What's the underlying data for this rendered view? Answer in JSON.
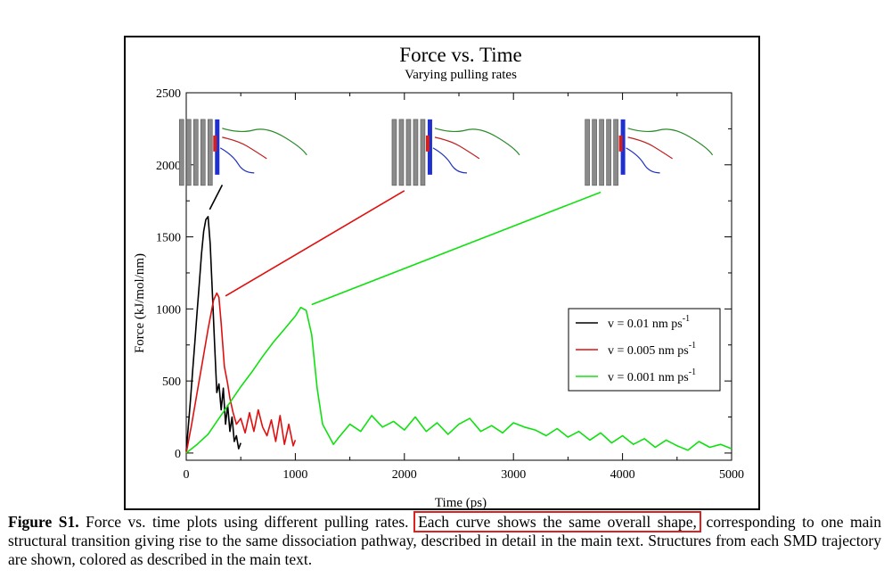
{
  "chart_data": {
    "type": "line",
    "title": "Force vs. Time",
    "subtitle": "Varying pulling rates",
    "xlabel": "Time (ps)",
    "ylabel": "Force (kJ/mol/nm)",
    "xlim": [
      0,
      5000
    ],
    "ylim": [
      -50,
      2500
    ],
    "xticks": [
      0,
      1000,
      2000,
      3000,
      4000,
      5000
    ],
    "yticks": [
      0,
      500,
      1000,
      1500,
      2000,
      2500
    ],
    "grid": false,
    "legend_position": "right",
    "series": [
      {
        "name": "v = 0.01 nm ps",
        "name_sup": "-1",
        "color": "#000000",
        "x": [
          0,
          20,
          40,
          60,
          80,
          100,
          120,
          140,
          160,
          180,
          200,
          220,
          240,
          260,
          280,
          300,
          320,
          340,
          360,
          380,
          400,
          420,
          440,
          460,
          480,
          500
        ],
        "y": [
          10,
          190,
          380,
          580,
          780,
          980,
          1180,
          1380,
          1540,
          1620,
          1640,
          1450,
          1100,
          760,
          420,
          480,
          300,
          450,
          200,
          330,
          150,
          250,
          80,
          120,
          30,
          70
        ]
      },
      {
        "name": "v = 0.005 nm ps",
        "name_sup": "-1",
        "color": "#e01010",
        "x": [
          0,
          50,
          100,
          150,
          200,
          250,
          280,
          300,
          320,
          350,
          380,
          400,
          430,
          460,
          500,
          540,
          580,
          620,
          660,
          700,
          740,
          780,
          820,
          860,
          900,
          940,
          980,
          1000
        ],
        "y": [
          0,
          200,
          420,
          640,
          860,
          1060,
          1110,
          1080,
          900,
          600,
          480,
          380,
          280,
          200,
          240,
          140,
          280,
          150,
          300,
          180,
          120,
          230,
          80,
          260,
          60,
          200,
          50,
          90
        ]
      },
      {
        "name": "v = 0.001 nm ps",
        "name_sup": "-1",
        "color": "#10e010",
        "x": [
          0,
          100,
          200,
          300,
          400,
          500,
          600,
          700,
          800,
          900,
          1000,
          1050,
          1100,
          1150,
          1200,
          1250,
          1300,
          1350,
          1400,
          1500,
          1600,
          1700,
          1800,
          1900,
          2000,
          2100,
          2200,
          2300,
          2400,
          2500,
          2600,
          2700,
          2800,
          2900,
          3000,
          3100,
          3200,
          3300,
          3400,
          3500,
          3600,
          3700,
          3800,
          3900,
          4000,
          4100,
          4200,
          4300,
          4400,
          4500,
          4600,
          4700,
          4800,
          4900,
          5000
        ],
        "y": [
          0,
          60,
          130,
          240,
          350,
          460,
          560,
          670,
          770,
          860,
          950,
          1010,
          990,
          820,
          450,
          200,
          130,
          60,
          110,
          200,
          150,
          260,
          180,
          220,
          160,
          250,
          150,
          210,
          130,
          200,
          240,
          150,
          190,
          140,
          210,
          180,
          160,
          120,
          170,
          110,
          150,
          90,
          140,
          70,
          120,
          60,
          100,
          40,
          90,
          50,
          20,
          80,
          40,
          60,
          30
        ]
      }
    ],
    "annotations": [
      {
        "type": "line",
        "color": "#000000",
        "from": [
          215,
          1690
        ],
        "to": [
          330,
          1860
        ]
      },
      {
        "type": "line",
        "color": "#e01010",
        "from": [
          360,
          1090
        ],
        "to": [
          2000,
          1820
        ]
      },
      {
        "type": "line",
        "color": "#10e010",
        "from": [
          1150,
          1030
        ],
        "to": [
          3800,
          1810
        ]
      }
    ],
    "inset_structures": [
      "structure-v0.01",
      "structure-v0.005",
      "structure-v0.001"
    ]
  },
  "caption": {
    "lead": "Figure S1.",
    "text_before": " Force vs. time plots using different pulling rates. ",
    "highlight": "Each curve shows the same overall shape,",
    "text_after": " corresponding to one main structural transition giving rise to the same dissociation pathway, described in detail in the main text. Structures from each SMD trajectory are shown, colored as described in the main text."
  }
}
